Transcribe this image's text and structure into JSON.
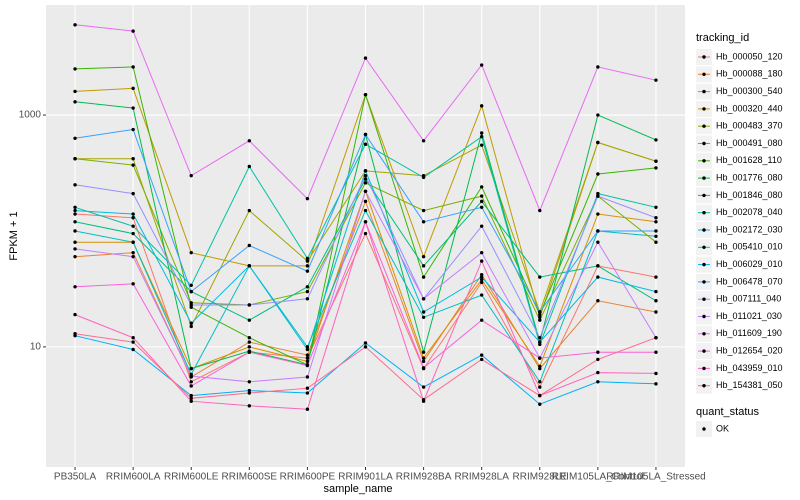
{
  "chart_data": {
    "type": "line",
    "x_label": "sample_name",
    "y_label": "FPKM + 1",
    "log_scale_y": true,
    "grid": true,
    "legend_title": "tracking_id",
    "legend_position": "right",
    "point_color": "#000000",
    "shape_legend": {
      "title": "quant_status",
      "labels": [
        "OK"
      ]
    },
    "categories": [
      "PB350LA",
      "RRIM600LA",
      "RRIM600LE",
      "RRIM600SE",
      "RRIM600PE",
      "RRIM901LA",
      "RRIM928BA",
      "RRIM928LA",
      "RRIM928LE",
      "RRIM105LA_Control",
      "RRIM105LA_Stressed"
    ],
    "ylim": [
      0.92,
      8900
    ],
    "yticks": [
      10,
      1000
    ],
    "series": [
      {
        "name": "Hb_000050_120",
        "color": "#F8766D",
        "values": [
          140,
          130,
          5.0,
          9.0,
          8.0,
          95,
          6.5,
          36,
          4.5,
          50,
          40
        ]
      },
      {
        "name": "Hb_000088_180",
        "color": "#EA8331",
        "values": [
          60,
          65,
          5.5,
          11,
          8.5,
          180,
          7.5,
          42,
          6.5,
          25,
          20
        ]
      },
      {
        "name": "Hb_000300_540",
        "color": "#D89000",
        "values": [
          80,
          80,
          6.5,
          10,
          7.5,
          220,
          8,
          38,
          6.8,
          140,
          120
        ]
      },
      {
        "name": "Hb_000320_440",
        "color": "#C09B00",
        "values": [
          1600,
          1700,
          65,
          50,
          50,
          1500,
          60,
          1200,
          18,
          580,
          400
        ]
      },
      {
        "name": "Hb_000483_370",
        "color": "#A3A500",
        "values": [
          420,
          420,
          15,
          150,
          55,
          330,
          300,
          550,
          20,
          580,
          400
        ]
      },
      {
        "name": "Hb_000491_080",
        "color": "#7CAE00",
        "values": [
          420,
          370,
          24,
          23,
          30,
          260,
          150,
          200,
          17,
          200,
          80
        ]
      },
      {
        "name": "Hb_001628_110",
        "color": "#39B600",
        "values": [
          2500,
          2600,
          22,
          12,
          7,
          1500,
          40,
          240,
          19,
          310,
          350
        ]
      },
      {
        "name": "Hb_001776_080",
        "color": "#00BB4E",
        "values": [
          1300,
          1150,
          6.5,
          9.2,
          7,
          680,
          9,
          700,
          11,
          1000,
          610
        ]
      },
      {
        "name": "Hb_001846_080",
        "color": "#00BF7D",
        "values": [
          120,
          95,
          30,
          17,
          33,
          280,
          50,
          180,
          40,
          50,
          25
        ]
      },
      {
        "name": "Hb_002078_040",
        "color": "#00C1A3",
        "values": [
          160,
          110,
          34,
          360,
          58,
          560,
          290,
          650,
          10.5,
          210,
          160
        ]
      },
      {
        "name": "Hb_002172_030",
        "color": "#00BFC4",
        "values": [
          100,
          80,
          5.8,
          50,
          10,
          150,
          18,
          28,
          5,
          100,
          90
        ]
      },
      {
        "name": "Hb_005410_010",
        "color": "#00BAE0",
        "values": [
          150,
          140,
          16,
          50,
          9.5,
          330,
          20,
          40,
          11,
          40,
          30
        ]
      },
      {
        "name": "Hb_006029_010",
        "color": "#00B0F6",
        "values": [
          12.5,
          9.5,
          3.8,
          4.2,
          4.0,
          10.8,
          4.5,
          8.5,
          3.2,
          5.0,
          4.8
        ]
      },
      {
        "name": "Hb_006478_070",
        "color": "#35A2FF",
        "values": [
          630,
          750,
          30,
          75,
          45,
          680,
          120,
          160,
          20,
          100,
          100
        ]
      },
      {
        "name": "Hb_007111_040",
        "color": "#9590FF",
        "values": [
          250,
          210,
          23,
          23,
          26,
          300,
          26,
          110,
          12,
          200,
          130
        ]
      },
      {
        "name": "Hb_011021_030",
        "color": "#C77CFF",
        "values": [
          70,
          60,
          5.6,
          5.0,
          5.5,
          220,
          26,
          65,
          8,
          80,
          12
        ]
      },
      {
        "name": "Hb_011609_190",
        "color": "#E76BF3",
        "values": [
          6000,
          5300,
          300,
          600,
          190,
          3100,
          600,
          2700,
          150,
          2600,
          2000
        ]
      },
      {
        "name": "Hb_012654_020",
        "color": "#FA62DB",
        "values": [
          33,
          35,
          4.6,
          9,
          6.9,
          120,
          6.6,
          17,
          8,
          9,
          9
        ]
      },
      {
        "name": "Hb_043959_010",
        "color": "#FF62BC",
        "values": [
          19,
          12,
          3.4,
          3.1,
          2.9,
          120,
          3.4,
          55,
          3.8,
          6.0,
          5.9
        ]
      },
      {
        "name": "Hb_154381_050",
        "color": "#FF6C91",
        "values": [
          13,
          11,
          3.6,
          4.0,
          4.4,
          10,
          3.5,
          7.8,
          3.8,
          7.8,
          12
        ]
      }
    ]
  }
}
